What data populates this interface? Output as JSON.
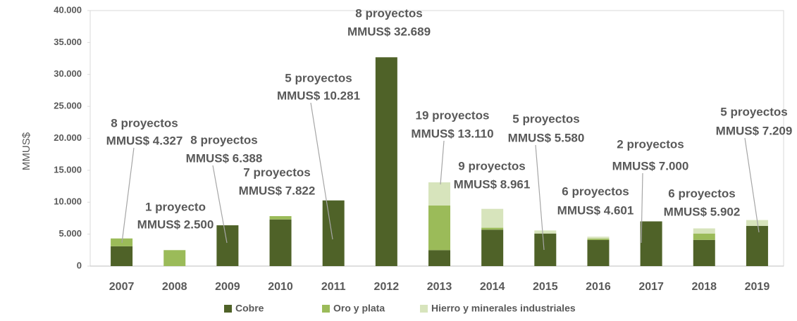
{
  "chart_data": {
    "type": "stacked-bar",
    "ylabel": "MMUS$",
    "categories": [
      "2007",
      "2008",
      "2009",
      "2010",
      "2011",
      "2012",
      "2013",
      "2014",
      "2015",
      "2016",
      "2017",
      "2018",
      "2019"
    ],
    "series": [
      {
        "name": "Cobre",
        "color": "#4f6228",
        "values": [
          3100,
          0,
          6388,
          7300,
          10281,
          32689,
          2500,
          5700,
          5100,
          4100,
          7000,
          4100,
          6300
        ]
      },
      {
        "name": "Oro y plata",
        "color": "#9bbb59",
        "values": [
          1227,
          2500,
          0,
          522,
          0,
          0,
          7000,
          300,
          0,
          200,
          0,
          1000,
          0
        ]
      },
      {
        "name": "Hierro y minerales industriales",
        "color": "#d7e4bc",
        "values": [
          0,
          0,
          0,
          0,
          0,
          0,
          3610,
          2961,
          480,
          301,
          0,
          802,
          909
        ]
      }
    ],
    "annotations": [
      [
        "8 proyectos",
        "MMUS$ 4.327"
      ],
      [
        "1 proyecto",
        "MMUS$ 2.500"
      ],
      [
        "8 proyectos",
        "MMUS$ 6.388"
      ],
      [
        "7 proyectos",
        "MMUS$ 7.822"
      ],
      [
        "5 proyectos",
        "MMUS$ 10.281"
      ],
      [
        "8 proyectos",
        "MMUS$ 32.689"
      ],
      [
        "19 proyectos",
        "MMUS$ 13.110"
      ],
      [
        "9 proyectos",
        "MMUS$ 8.961"
      ],
      [
        "5 proyectos",
        "MMUS$ 5.580"
      ],
      [
        "6 proyectos",
        "MMUS$ 4.601"
      ],
      [
        "2 proyectos",
        "MMUS$ 7.000"
      ],
      [
        "6 proyectos",
        "MMUS$ 5.902"
      ],
      [
        "5 proyectos",
        "MMUS$ 7.209"
      ]
    ],
    "ylim": [
      0,
      40000
    ],
    "yticks": [
      0,
      {
        "value": 5000,
        "label": "5.000"
      },
      {
        "value": 10000,
        "label": "10.000"
      },
      {
        "value": 15000,
        "label": "15.000"
      },
      {
        "value": 20000,
        "label": "20.000"
      },
      {
        "value": 25000,
        "label": "25.000"
      },
      {
        "value": 30000,
        "label": "30.000"
      },
      {
        "value": 35000,
        "label": "35.000"
      },
      {
        "value": 40000,
        "label": "40.000"
      }
    ],
    "legend": "bottom"
  }
}
